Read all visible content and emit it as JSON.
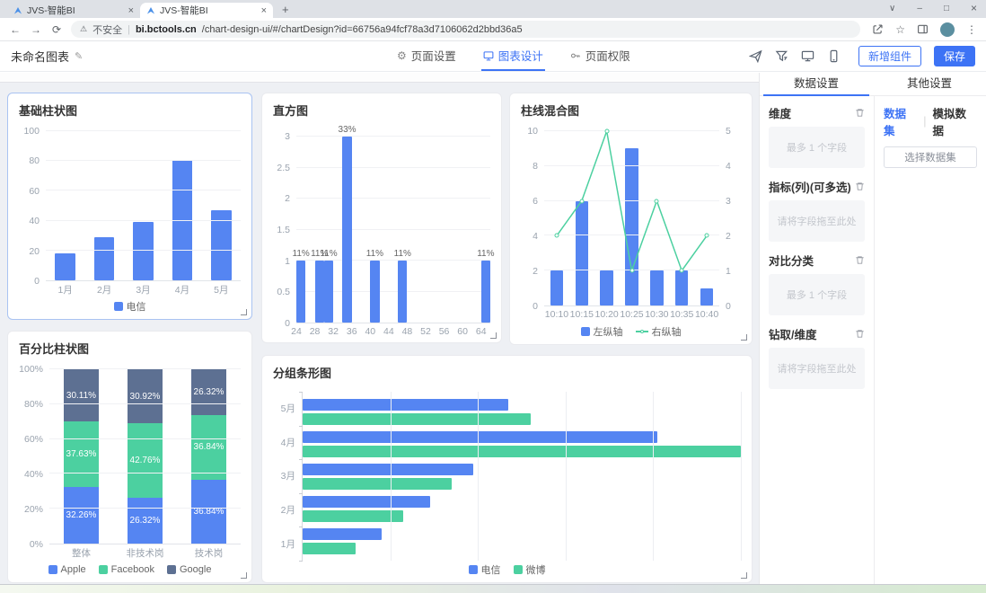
{
  "browser": {
    "tabs": [
      {
        "title": "JVS-智能BI"
      },
      {
        "title": "JVS-智能BI"
      }
    ],
    "url": {
      "security": "不安全",
      "domain": "bi.bctools.cn",
      "path": "/chart-design-ui/#/chartDesign?id=66756a94fcf78a3d7106062d2bbd36a5"
    }
  },
  "icons": {
    "chevron": "∨",
    "minimize": "–",
    "maximize": "□",
    "close": "×",
    "back": "←",
    "forward": "→",
    "reload": "⟳",
    "star": "☆",
    "kebab": "⋮",
    "warning": "⚠",
    "divider": "|",
    "plus": "+",
    "pencil": "✎",
    "gear": "⚙"
  },
  "toolbar": {
    "chart_name": "未命名图表",
    "nav": [
      {
        "label": "页面设置"
      },
      {
        "label": "图表设计",
        "active": true
      },
      {
        "label": "页面权限"
      }
    ],
    "add_component_label": "新增组件",
    "save_label": "保存"
  },
  "sidebar": {
    "tabs": [
      "数据设置",
      "其他设置"
    ],
    "sections": [
      {
        "title": "维度",
        "placeholder": "最多 1 个字段"
      },
      {
        "title": "指标(列)(可多选)",
        "placeholder": "请将字段拖至此处"
      },
      {
        "title": "对比分类",
        "placeholder": "最多 1 个字段"
      },
      {
        "title": "钻取/维度",
        "placeholder": "请将字段拖至此处"
      }
    ],
    "data_tabs": [
      "数据集",
      "模拟数据"
    ],
    "select_dataset_label": "选择数据集"
  },
  "colors": {
    "blue": "#5585f2",
    "green": "#4cd0a0",
    "dark": "#5d7092",
    "accent": "#3d73f5"
  },
  "chart_data": [
    {
      "id": "basic_bar",
      "type": "bar",
      "title": "基础柱状图",
      "categories": [
        "1月",
        "2月",
        "3月",
        "4月",
        "5月"
      ],
      "series": [
        {
          "name": "电信",
          "values": [
            18,
            29,
            39,
            81,
            47
          ]
        }
      ],
      "ylim": [
        0,
        100
      ],
      "yticks": [
        100,
        80,
        60,
        40,
        20,
        0
      ],
      "grid": true,
      "legend_position": "bottom"
    },
    {
      "id": "histogram",
      "type": "bar",
      "title": "直方图",
      "bins": [
        {
          "range": [
            24,
            26
          ],
          "value": 1,
          "label": "11%"
        },
        {
          "range": [
            28,
            30
          ],
          "value": 1,
          "label": "11%"
        },
        {
          "range": [
            30,
            32
          ],
          "value": 1,
          "label": "11%"
        },
        {
          "range": [
            34,
            36
          ],
          "value": 3,
          "label": "33%"
        },
        {
          "range": [
            40,
            42
          ],
          "value": 1,
          "label": "11%"
        },
        {
          "range": [
            46,
            48
          ],
          "value": 1,
          "label": "11%"
        },
        {
          "range": [
            64,
            66
          ],
          "value": 1,
          "label": "11%"
        }
      ],
      "xlim": [
        24,
        66
      ],
      "xticks": [
        24,
        28,
        32,
        36,
        40,
        44,
        48,
        52,
        56,
        60,
        64
      ],
      "ylim": [
        0,
        3
      ],
      "yticks": [
        3,
        2.5,
        2,
        1.5,
        1,
        0.5,
        0
      ],
      "grid": true
    },
    {
      "id": "bar_line",
      "type": "bar+line",
      "title": "柱线混合图",
      "categories": [
        "10:10",
        "10:15",
        "10:20",
        "10:25",
        "10:30",
        "10:35",
        "10:40"
      ],
      "bar_series": {
        "name": "左纵轴",
        "axis": "left",
        "values": [
          2,
          6,
          2,
          9,
          2,
          2,
          1
        ]
      },
      "line_series": {
        "name": "右纵轴",
        "axis": "right",
        "values": [
          2,
          3,
          5,
          1,
          3,
          1,
          2
        ]
      },
      "left_ylim": [
        0,
        10
      ],
      "left_yticks": [
        10,
        8,
        6,
        4,
        2,
        0
      ],
      "right_ylim": [
        0,
        5
      ],
      "right_yticks": [
        5,
        4,
        3,
        2,
        1,
        0
      ],
      "grid": true,
      "legend_position": "bottom"
    },
    {
      "id": "percent_stacked",
      "type": "bar",
      "stacked": true,
      "unit": "percent",
      "title": "百分比柱状图",
      "categories": [
        "整体",
        "非技术岗",
        "技术岗"
      ],
      "series": [
        {
          "name": "Apple",
          "values": [
            32.26,
            26.32,
            36.84
          ]
        },
        {
          "name": "Facebook",
          "values": [
            37.63,
            42.76,
            36.84
          ]
        },
        {
          "name": "Google",
          "values": [
            30.11,
            30.92,
            26.32
          ]
        }
      ],
      "labels": [
        [
          "32.26%",
          "26.32%",
          "36.84%"
        ],
        [
          "37.63%",
          "42.76%",
          "36.84%"
        ],
        [
          "30.11%",
          "30.92%",
          "26.32%"
        ]
      ],
      "yticks": [
        "100%",
        "80%",
        "60%",
        "40%",
        "20%",
        "0%"
      ],
      "grid": true,
      "legend_position": "bottom"
    },
    {
      "id": "grouped_hbar",
      "type": "bar",
      "horizontal": true,
      "title": "分组条形图",
      "categories": [
        "5月",
        "4月",
        "3月",
        "2月",
        "1月"
      ],
      "series": [
        {
          "name": "电信",
          "values": [
            47,
            81,
            39,
            29,
            18
          ]
        },
        {
          "name": "微博",
          "values": [
            52,
            100,
            34,
            23,
            12
          ]
        }
      ],
      "xlim": [
        0,
        100
      ],
      "grid": true,
      "legend_position": "bottom"
    }
  ]
}
